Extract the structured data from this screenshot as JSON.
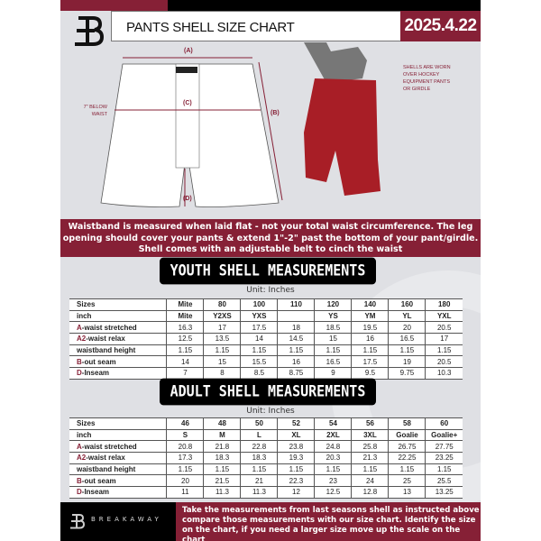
{
  "header": {
    "title": "PANTS SHELL SIZE CHART",
    "date": "2025.4.22"
  },
  "diagram": {
    "labels": {
      "a": "(A)",
      "b": "(B)",
      "c": "(C)",
      "d": "(D)"
    },
    "below_waist_note": "7\" BELOW WAIST",
    "worn_note": "SHELLS ARE WORN OVER HOCKEY EQUIPMENT PANTS OR GIRDLE"
  },
  "info_band": "Waistband is measured when laid flat - not your total waist circumference. The leg opening should cover your pants & extend 1\"-2\" past the bottom of your pant/girdle. Shell comes with an adjustable belt to cinch the waist",
  "youth": {
    "title": "YOUTH SHELL MEASUREMENTS",
    "unit": "Unit: Inches",
    "rows": [
      {
        "prefix": "",
        "label": "Sizes",
        "values": [
          "Mite",
          "80",
          "100",
          "110",
          "120",
          "140",
          "160",
          "180"
        ]
      },
      {
        "prefix": "",
        "label": "inch",
        "values": [
          "Mite",
          "Y2XS",
          "YXS",
          "",
          "YS",
          "YM",
          "YL",
          "YXL"
        ]
      },
      {
        "prefix": "A",
        "label": "-waist stretched",
        "values": [
          "16.3",
          "17",
          "17.5",
          "18",
          "18.5",
          "19.5",
          "20",
          "20.5"
        ]
      },
      {
        "prefix": "A2",
        "label": "-waist relax",
        "values": [
          "12.5",
          "13.5",
          "14",
          "14.5",
          "15",
          "16",
          "16.5",
          "17"
        ]
      },
      {
        "prefix": "",
        "label": "waistband height",
        "values": [
          "1.15",
          "1.15",
          "1.15",
          "1.15",
          "1.15",
          "1.15",
          "1.15",
          "1.15"
        ]
      },
      {
        "prefix": "B",
        "label": "-out seam",
        "values": [
          "14",
          "15",
          "15.5",
          "16",
          "16.5",
          "17.5",
          "19",
          "20.5"
        ]
      },
      {
        "prefix": "D",
        "label": "-Inseam",
        "values": [
          "7",
          "8",
          "8.5",
          "8.75",
          "9",
          "9.5",
          "9.75",
          "10.3"
        ]
      }
    ]
  },
  "adult": {
    "title": "ADULT SHELL MEASUREMENTS",
    "unit": "Unit: Inches",
    "rows": [
      {
        "prefix": "",
        "label": "Sizes",
        "values": [
          "46",
          "48",
          "50",
          "52",
          "54",
          "56",
          "58",
          "60"
        ]
      },
      {
        "prefix": "",
        "label": "inch",
        "values": [
          "S",
          "M",
          "L",
          "XL",
          "2XL",
          "3XL",
          "Goalie",
          "Goalie+"
        ]
      },
      {
        "prefix": "A",
        "label": "-waist stretched",
        "values": [
          "20.8",
          "21.8",
          "22.8",
          "23.8",
          "24.8",
          "25.8",
          "26.75",
          "27.75"
        ]
      },
      {
        "prefix": "A2",
        "label": "-waist relax",
        "values": [
          "17.3",
          "18.3",
          "18.3",
          "19.3",
          "20.3",
          "21.3",
          "22.25",
          "23.25"
        ]
      },
      {
        "prefix": "",
        "label": "waistband height",
        "values": [
          "1.15",
          "1.15",
          "1.15",
          "1.15",
          "1.15",
          "1.15",
          "1.15",
          "1.15"
        ]
      },
      {
        "prefix": "B",
        "label": "-out seam",
        "values": [
          "20",
          "21.5",
          "21",
          "22.3",
          "23",
          "24",
          "25",
          "25.5"
        ]
      },
      {
        "prefix": "D",
        "label": "-Inseam",
        "values": [
          "11",
          "11.3",
          "11.3",
          "12",
          "12.5",
          "12.8",
          "13",
          "13.25"
        ]
      }
    ]
  },
  "footer": {
    "brand": "BREAKAWAY",
    "instructions": "Take the measurements from last seasons shell as instructed above compare those measurements  with our size chart. Identify the size on the chart, if you need a larger size move up the scale on the chart"
  },
  "colors": {
    "accent": "#862036",
    "background": "#dfe0e4",
    "dark": "#000000"
  }
}
